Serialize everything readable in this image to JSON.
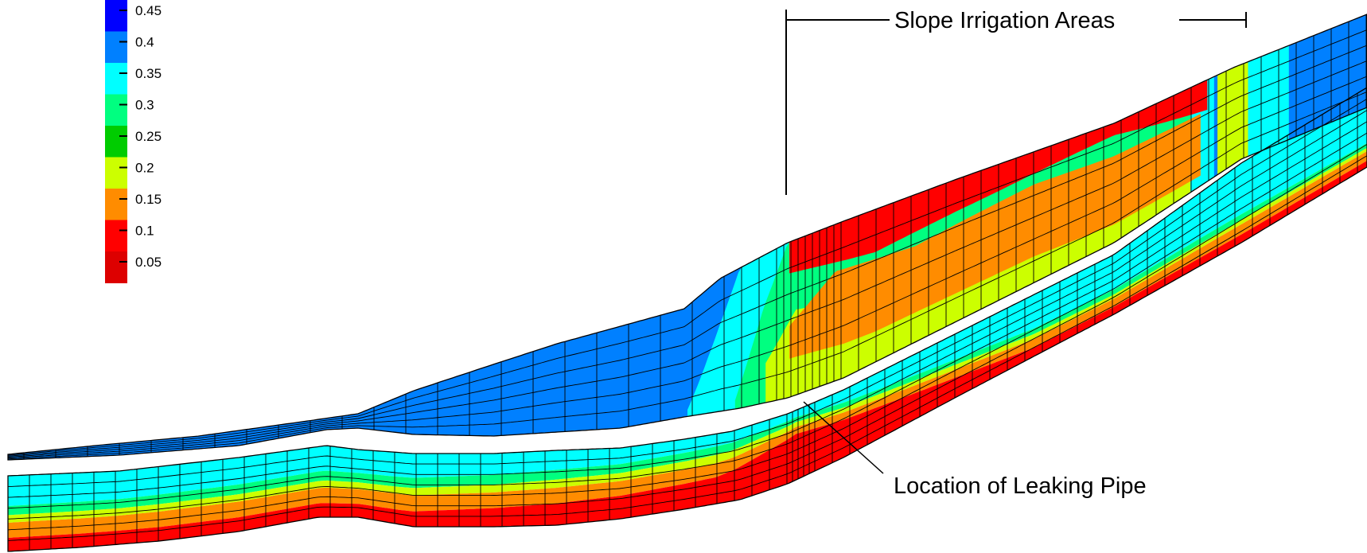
{
  "legend": {
    "colors": [
      "#0000ff",
      "#0080ff",
      "#00ffff",
      "#00ff80",
      "#00cc00",
      "#ccff00",
      "#ff8c00",
      "#ff0000",
      "#dd0000"
    ],
    "labels": [
      "0.45",
      "0.4",
      "0.35",
      "0.3",
      "0.25",
      "0.2",
      "0.15",
      "0.1",
      "0.05"
    ]
  },
  "annotations": {
    "slope_irrigation": "Slope Irrigation Areas",
    "leaking_pipe": "Location of Leaking Pipe"
  },
  "palette": {
    "red": "#ff0000",
    "orange": "#ff8c00",
    "yellow": "#ccff00",
    "light_green": "#00ff80",
    "green": "#00cc00",
    "cyan": "#00ffff",
    "blue": "#0080ff",
    "deep_blue": "#0000ff",
    "mesh_line": "#000000"
  }
}
